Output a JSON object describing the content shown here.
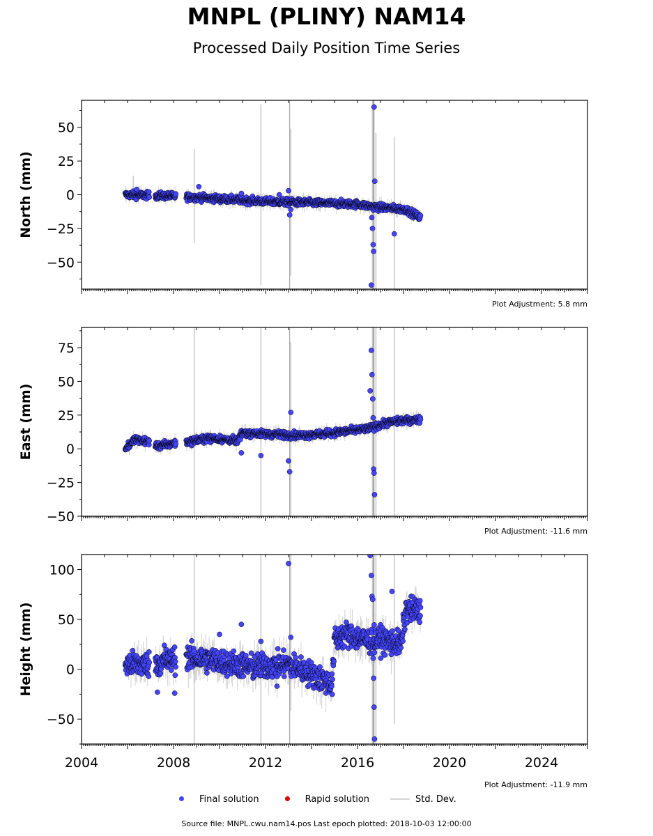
{
  "title": "MNPL (PLINY) NAM14",
  "subtitle": "Processed Daily Position Time Series",
  "legend": {
    "final_label": "Final solution",
    "rapid_label": "Rapid solution",
    "std_label": "Std. Dev."
  },
  "footer": "Source file: MNPL.cwu.nam14.pos  Last epoch plotted: 2018-10-03 12:00:00",
  "colors": {
    "final": "#4444ff",
    "rapid": "#dd0000",
    "std_dev": "#bbbbbb",
    "marker_edge": "#000000"
  },
  "chart_data": [
    {
      "type": "scatter",
      "ylabel": "North (mm)",
      "adjustment": "Plot Adjustment: 5.8 mm",
      "xlim": [
        2004,
        2026
      ],
      "ylim": [
        -70,
        70
      ],
      "yticks": [
        -50,
        -25,
        0,
        25,
        50
      ],
      "trend": {
        "x": [
          2005.9,
          2008.0,
          2010.0,
          2012.0,
          2014.0,
          2016.0,
          2016.7,
          2017.5,
          2018.1,
          2018.75
        ],
        "y": [
          0,
          -1,
          -3,
          -5,
          -6,
          -7,
          -9,
          -10,
          -11,
          -17
        ]
      },
      "gaps": [
        [
          2006.95,
          2007.2
        ],
        [
          2008.1,
          2008.55
        ]
      ],
      "scatter": 1.8,
      "outliers": {
        "x": [
          2006.4,
          2009.1,
          2010.95,
          2012.6,
          2013.0,
          2013.05,
          2013.1,
          2016.6,
          2016.62,
          2016.65,
          2016.68,
          2016.7,
          2016.72,
          2016.75,
          2017.6
        ],
        "y": [
          4,
          6,
          1,
          0,
          3,
          -15,
          -11,
          -67,
          -17,
          -25,
          -37,
          -42,
          65,
          10,
          -29
        ]
      },
      "std_bars": [
        {
          "x": 2008.9,
          "lo": -36,
          "hi": 34
        },
        {
          "x": 2011.8,
          "lo": -67,
          "hi": 67
        },
        {
          "x": 2013.1,
          "lo": -60,
          "hi": 49
        },
        {
          "x": 2016.65,
          "lo": -70,
          "hi": 70
        },
        {
          "x": 2016.8,
          "lo": -70,
          "hi": 46
        },
        {
          "x": 2017.6,
          "lo": -70,
          "hi": 43
        },
        {
          "x": 2006.25,
          "lo": -5,
          "hi": 14
        }
      ]
    },
    {
      "type": "scatter",
      "ylabel": "East (mm)",
      "adjustment": "Plot Adjustment: -11.6 mm",
      "xlim": [
        2004,
        2026
      ],
      "ylim": [
        -50,
        90
      ],
      "yticks": [
        -50,
        -25,
        0,
        25,
        50,
        75
      ],
      "trend": {
        "x": [
          2005.9,
          2006.3,
          2007.0,
          2007.3,
          2008.0,
          2008.6,
          2009.5,
          2010.8,
          2011.0,
          2012.0,
          2013.5,
          2014.5,
          2015.5,
          2016.5,
          2017.0,
          2017.5,
          2018.75
        ],
        "y": [
          0,
          7,
          5,
          2,
          4,
          5,
          8,
          6,
          12,
          11,
          10,
          11,
          13,
          15,
          18,
          20,
          22
        ]
      },
      "gaps": [
        [
          2006.95,
          2007.2
        ],
        [
          2008.1,
          2008.55
        ]
      ],
      "scatter": 1.8,
      "outliers": {
        "x": [
          2010.95,
          2011.8,
          2013.0,
          2013.05,
          2013.1,
          2016.55,
          2016.6,
          2016.63,
          2016.66,
          2016.68,
          2016.7,
          2016.72,
          2016.74
        ],
        "y": [
          -3,
          -5,
          -9,
          -17,
          27,
          43,
          73,
          55,
          37,
          23,
          -15,
          -18,
          -34
        ]
      },
      "std_bars": [
        {
          "x": 2008.9,
          "lo": -50,
          "hi": 90
        },
        {
          "x": 2011.8,
          "lo": -50,
          "hi": 90
        },
        {
          "x": 2013.1,
          "lo": -50,
          "hi": 79
        },
        {
          "x": 2016.65,
          "lo": -50,
          "hi": 90
        },
        {
          "x": 2016.8,
          "lo": -50,
          "hi": 90
        },
        {
          "x": 2017.6,
          "lo": -50,
          "hi": 90
        }
      ]
    },
    {
      "type": "scatter",
      "ylabel": "Height (mm)",
      "adjustment": "Plot Adjustment: -11.9 mm",
      "xlim": [
        2004,
        2026
      ],
      "ylim": [
        -75,
        115
      ],
      "yticks": [
        -50,
        0,
        50,
        100
      ],
      "xticks": [
        2004,
        2008,
        2012,
        2016,
        2020,
        2024
      ],
      "trend": {
        "x": [
          2005.9,
          2007.0,
          2008.6,
          2010.0,
          2011.5,
          2013.0,
          2014.0,
          2014.9,
          2015.0,
          2015.5,
          2016.5,
          2017.0,
          2017.9,
          2018.1,
          2018.75
        ],
        "y": [
          5,
          5,
          12,
          8,
          2,
          5,
          -5,
          -15,
          30,
          35,
          28,
          30,
          25,
          60,
          58
        ]
      },
      "gaps": [
        [
          2006.95,
          2007.2
        ],
        [
          2008.1,
          2008.55
        ]
      ],
      "scatter": 9,
      "outliers": {
        "x": [
          2007.6,
          2008.05,
          2007.3,
          2010.0,
          2010.95,
          2011.8,
          2012.5,
          2013.0,
          2013.1,
          2016.55,
          2016.6,
          2016.63,
          2016.66,
          2016.68,
          2016.7,
          2016.72,
          2016.74,
          2017.5
        ],
        "y": [
          24,
          -24,
          -23,
          35,
          45,
          28,
          -17,
          106,
          32,
          114,
          94,
          73,
          70,
          11,
          -9,
          -38,
          -70,
          78
        ]
      },
      "std_bars": [
        {
          "x": 2008.9,
          "lo": -75,
          "hi": 115
        },
        {
          "x": 2011.8,
          "lo": -75,
          "hi": 115
        },
        {
          "x": 2013.1,
          "lo": -42,
          "hi": 115
        },
        {
          "x": 2016.65,
          "lo": -75,
          "hi": 115
        },
        {
          "x": 2016.8,
          "lo": -75,
          "hi": 115
        },
        {
          "x": 2017.6,
          "lo": -55,
          "hi": 115
        }
      ]
    }
  ]
}
